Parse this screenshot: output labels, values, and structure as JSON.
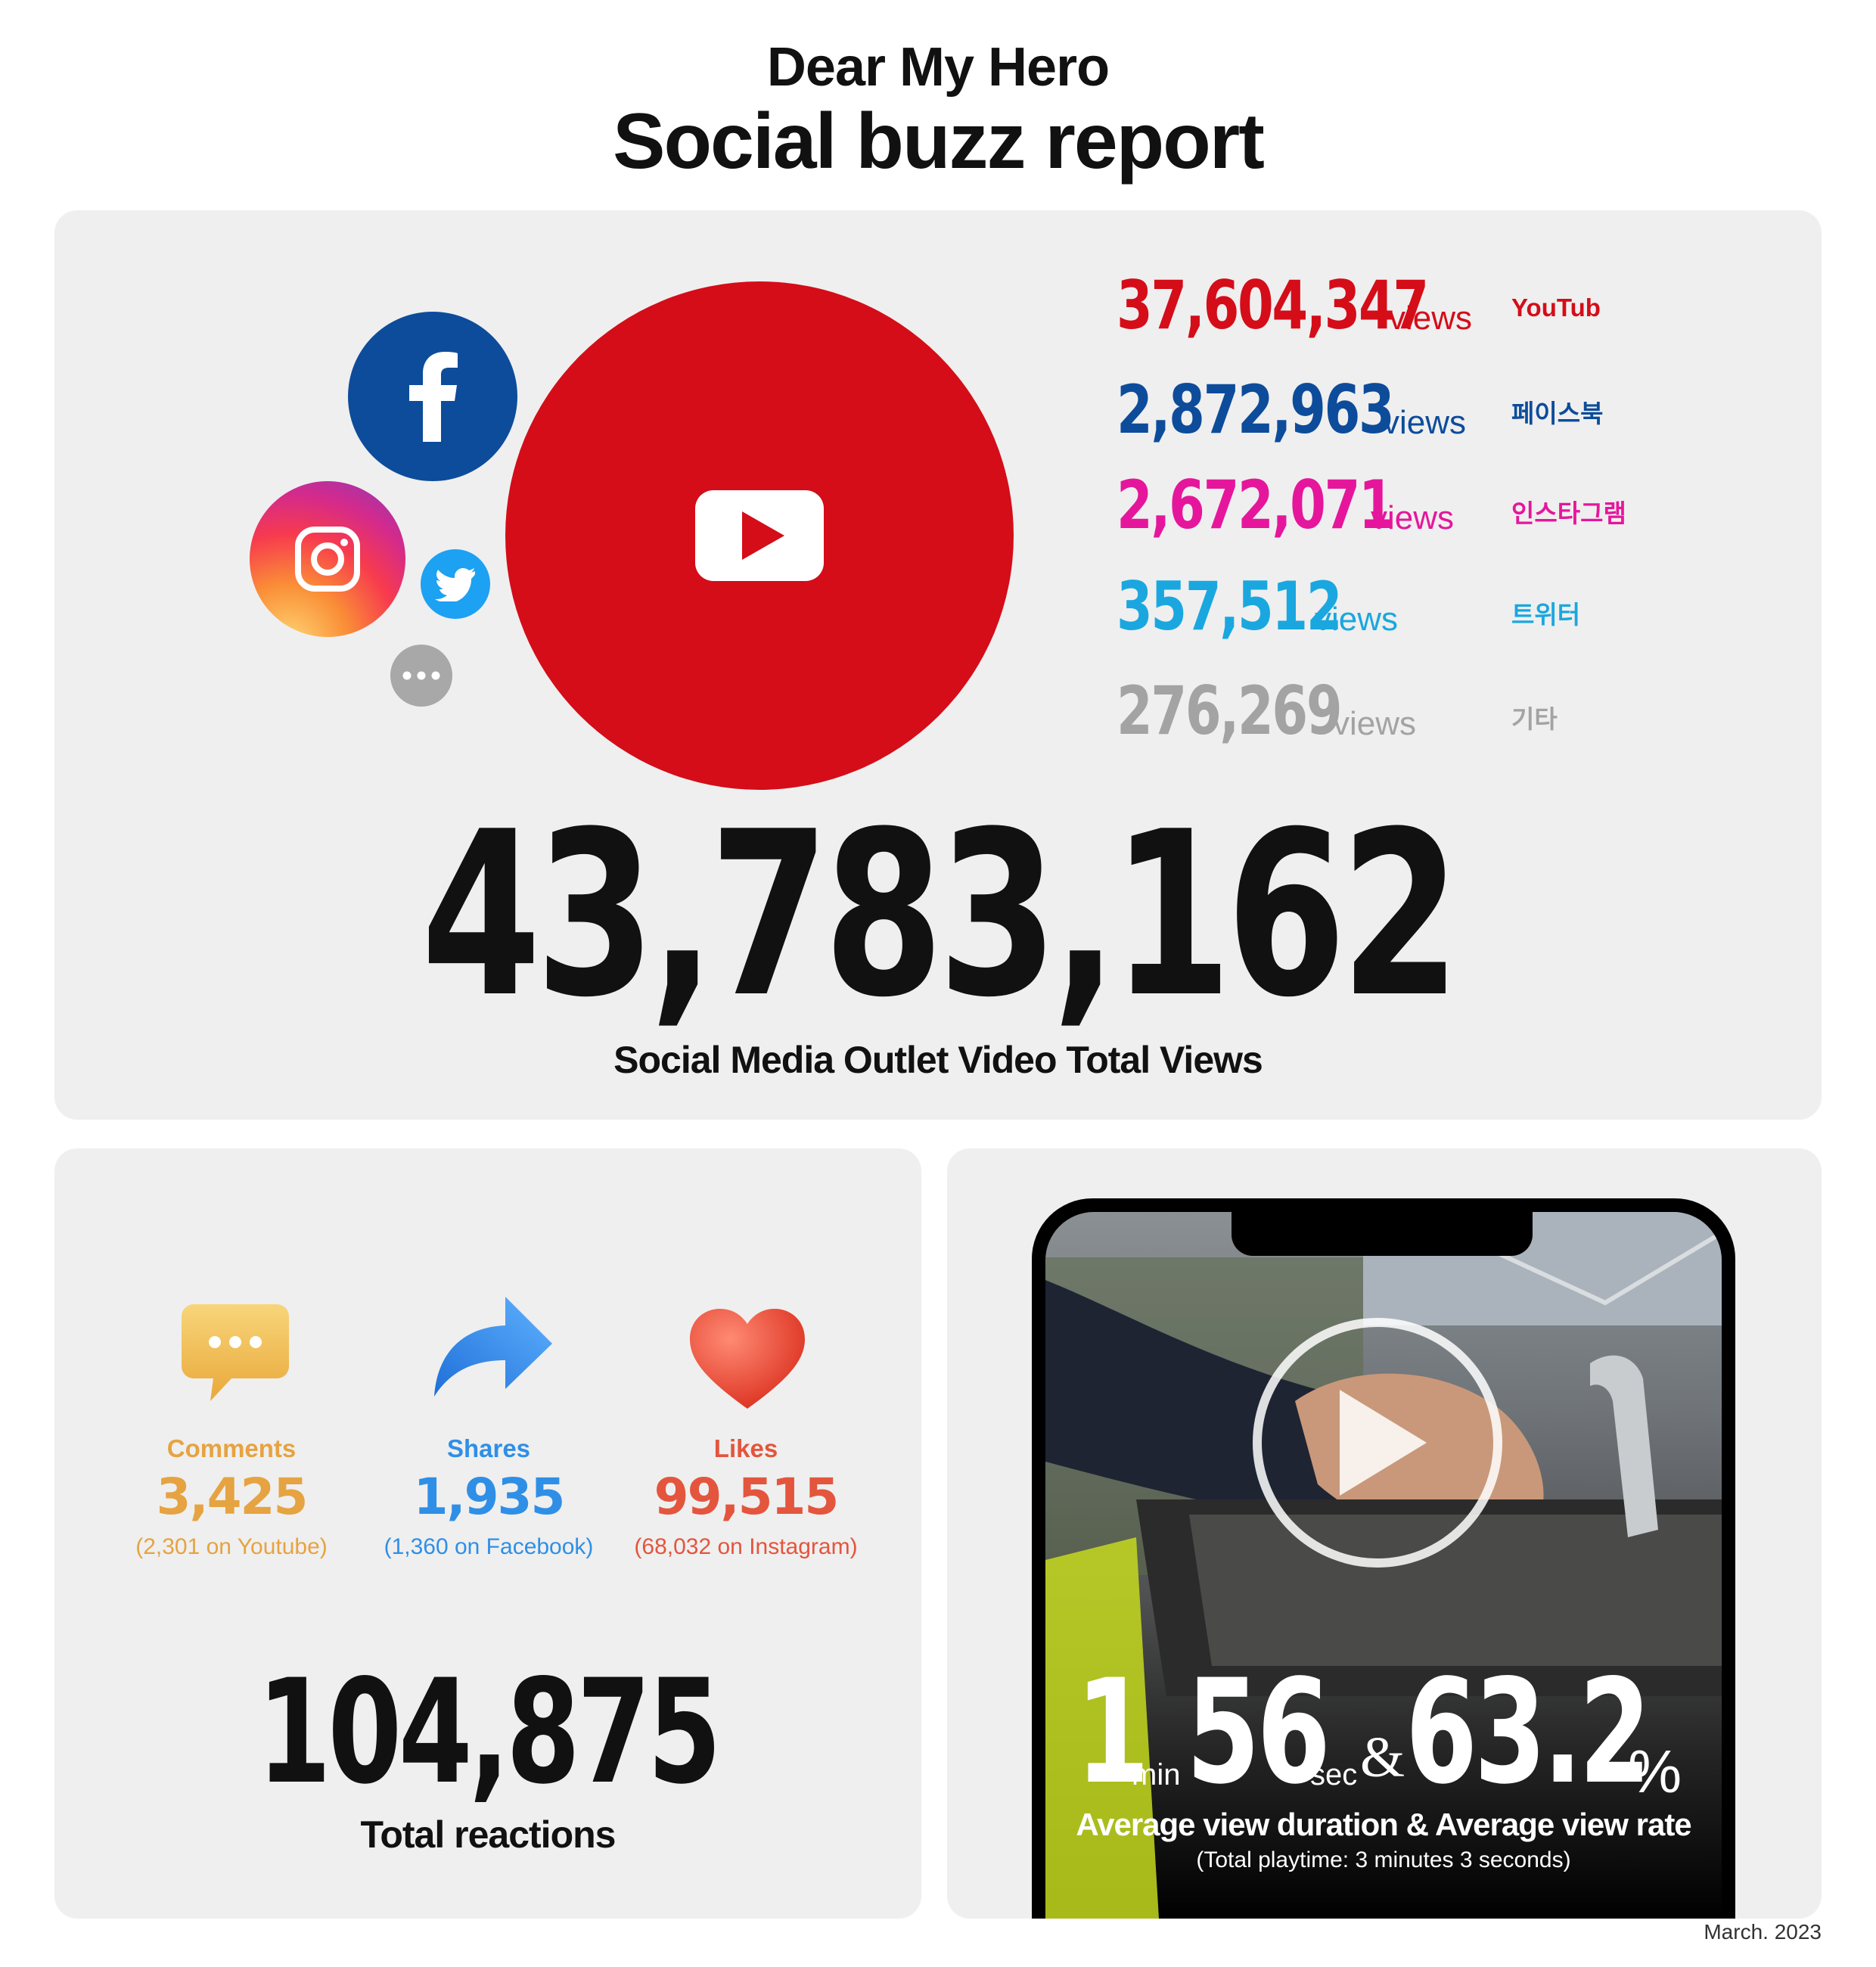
{
  "header": {
    "subtitle": "Dear My Hero",
    "title": "Social buzz report"
  },
  "views": {
    "items": [
      {
        "value": "37,604,347",
        "unit": "views",
        "name": "YouTub",
        "color": "#d40d19"
      },
      {
        "value": "2,872,963",
        "unit": "views",
        "name": "페이스북",
        "color": "#0d4c9b"
      },
      {
        "value": "2,672,071",
        "unit": "views",
        "name": "인스타그램",
        "color": "#e5169c"
      },
      {
        "value": "357,512",
        "unit": "views",
        "name": "트위터",
        "color": "#1aa7df"
      },
      {
        "value": "276,269",
        "unit": "views",
        "name": "기타",
        "color": "#a3a3a3"
      }
    ],
    "total": "43,783,162",
    "total_caption": "Social Media Outlet Video Total Views",
    "icons": [
      "facebook-icon",
      "youtube-icon",
      "instagram-icon",
      "twitter-icon",
      "more-icon"
    ]
  },
  "reactions": {
    "items": [
      {
        "label": "Comments",
        "value": "3,425",
        "detail": "(2,301 on Youtube)",
        "color": "#e6a341",
        "icon": "speech-bubble-icon"
      },
      {
        "label": "Shares",
        "value": "1,935",
        "detail": "(1,360 on Facebook)",
        "color": "#2f8fe6",
        "icon": "share-arrow-icon"
      },
      {
        "label": "Likes",
        "value": "99,515",
        "detail": "(68,032 on Instagram)",
        "color": "#e4553d",
        "icon": "heart-icon"
      }
    ],
    "total": "104,875",
    "total_caption": "Total reactions"
  },
  "duration": {
    "minutes": "1",
    "min_unit": "min",
    "seconds": "56",
    "sec_unit": "sec",
    "amp": "&",
    "rate": "63.2",
    "rate_unit": "%",
    "caption": "Average view duration & Average view rate",
    "note": "(Total playtime: 3 minutes 3 seconds)"
  },
  "footer": {
    "date": "March. 2023"
  }
}
